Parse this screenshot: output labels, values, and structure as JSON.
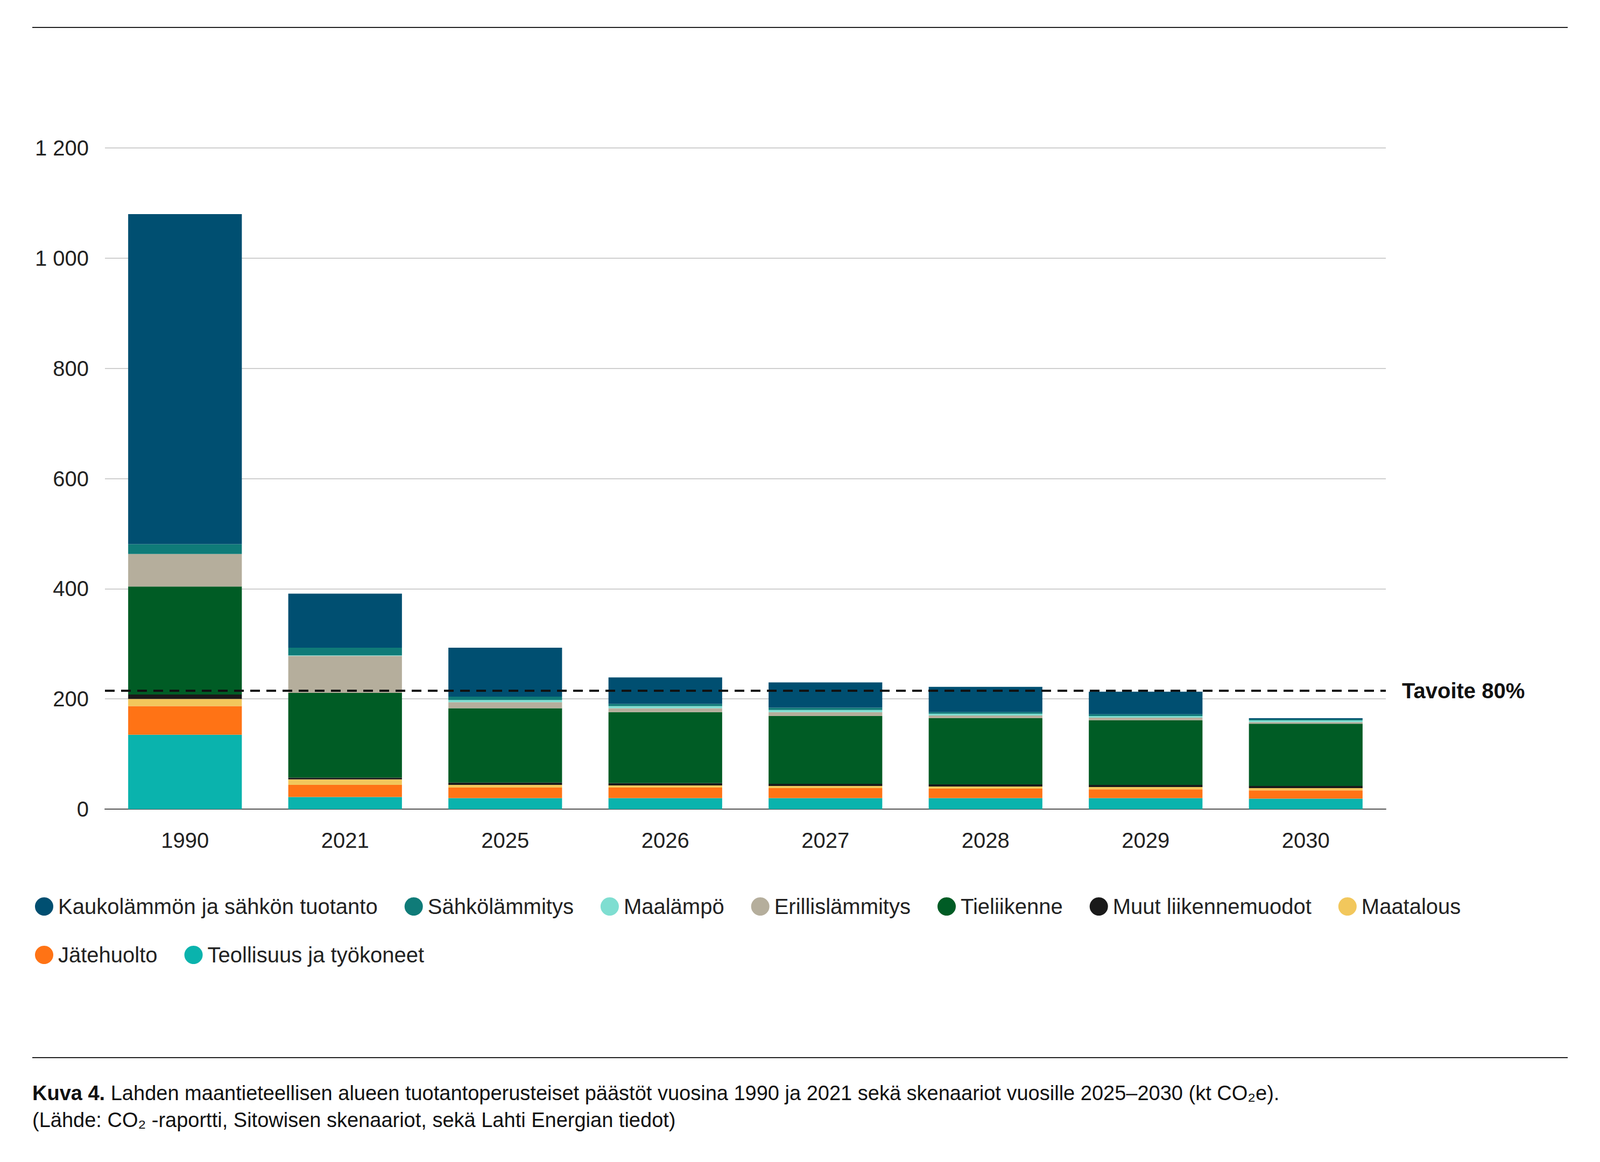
{
  "chart_data": {
    "type": "bar",
    "stacked": true,
    "grid": true,
    "legend": "bottom",
    "categories": [
      "1990",
      "2021",
      "2025",
      "2026",
      "2027",
      "2028",
      "2029",
      "2030"
    ],
    "series": [
      {
        "name": "Kaukolämmön ja sähkön tuotanto",
        "color": "#004f71",
        "values": [
          599,
          98,
          89,
          48,
          46,
          46,
          41,
          2
        ]
      },
      {
        "name": "Sähkölämmitys",
        "color": "#0f7b78",
        "values": [
          18,
          14,
          6,
          4,
          4,
          3,
          3,
          2
        ]
      },
      {
        "name": "Maalämpö",
        "color": "#7fded1",
        "values": [
          0,
          1,
          4,
          4,
          4,
          3,
          3,
          3
        ]
      },
      {
        "name": "Erillislämmitys",
        "color": "#b5ae9c",
        "values": [
          59,
          67,
          11,
          7,
          7,
          5,
          5,
          3
        ]
      },
      {
        "name": "Tieliikenne",
        "color": "#005c25",
        "values": [
          196,
          154,
          135,
          129,
          123,
          120,
          117,
          113
        ]
      },
      {
        "name": "Muut liikennemuodot",
        "color": "#1a1a1a",
        "values": [
          8,
          3,
          4,
          4,
          4,
          4,
          4,
          4
        ]
      },
      {
        "name": "Maatalous",
        "color": "#f2c75c",
        "values": [
          13,
          10,
          5,
          4,
          4,
          4,
          4,
          4
        ]
      },
      {
        "name": "Jätehuolto",
        "color": "#ff7315",
        "values": [
          52,
          22,
          19,
          19,
          18,
          17,
          16,
          15
        ]
      },
      {
        "name": "Teollisuus ja työkoneet",
        "color": "#0ab3ad",
        "values": [
          135,
          22,
          20,
          20,
          20,
          20,
          20,
          19
        ]
      }
    ],
    "ylim": [
      0,
      1200
    ],
    "yticks": [
      0,
      200,
      400,
      600,
      800,
      {
        "value": 1000,
        "label": "1 000"
      },
      {
        "value": 1200,
        "label": "1 200"
      }
    ],
    "annotations": [
      {
        "text": "Tavoite 80%",
        "y": 215
      }
    ],
    "caption_label": "Kuva 4.",
    "caption": "Lahden maantieteellisen alueen tuotantoperusteiset päästöt vuosina 1990 ja 2021 sekä skenaariot vuosille 2025–2030 (kt CO₂e).",
    "source": "(Lähde: CO₂ -raportti, Sitowisen skenaariot, sekä Lahti Energian tiedot)"
  }
}
